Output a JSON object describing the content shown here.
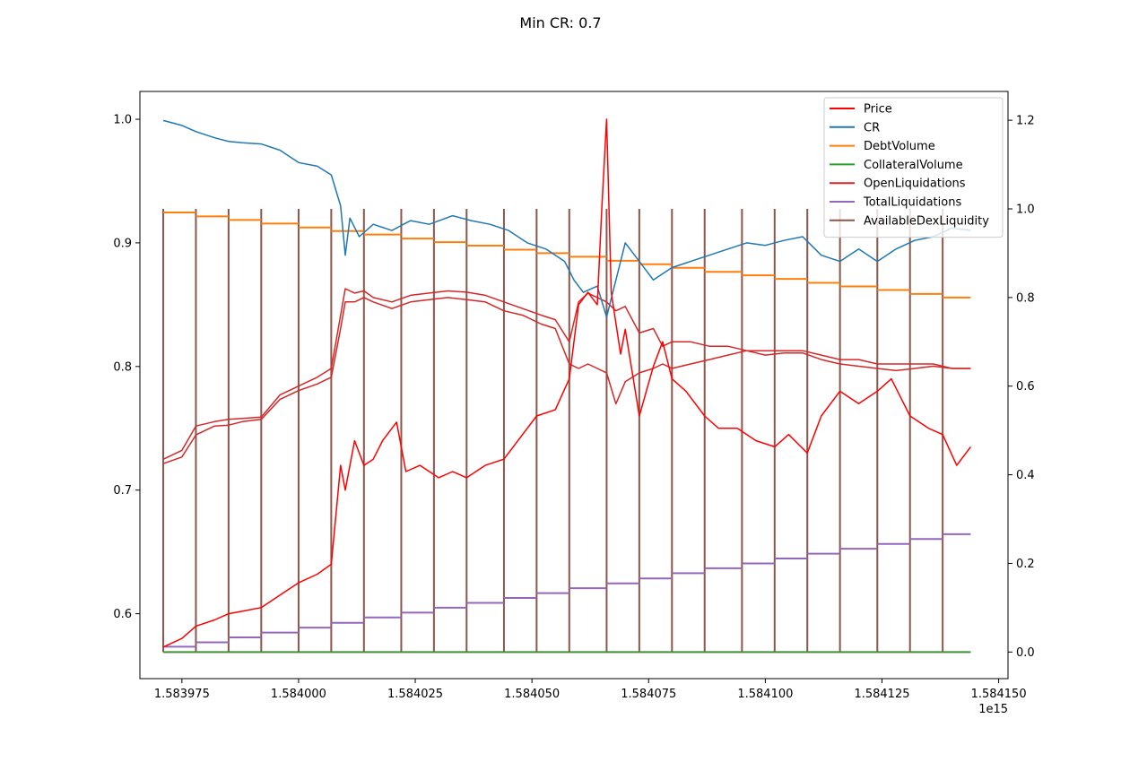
{
  "chart_data": {
    "type": "line",
    "title": "Min CR: 0.7",
    "x_offset_label": "1e15",
    "x_ticks": [
      "1.583975",
      "1.584000",
      "1.584025",
      "1.584050",
      "1.584075",
      "1.584100",
      "1.584125",
      "1.584150"
    ],
    "x_tick_values": [
      1.583975,
      1.584,
      1.584025,
      1.58405,
      1.584075,
      1.5841,
      1.584125,
      1.58415
    ],
    "xlim": [
      1.583966,
      1.584152
    ],
    "y_left_ticks": [
      "0.6",
      "0.7",
      "0.8",
      "0.9",
      "1.0"
    ],
    "y_left_tick_values": [
      0.6,
      0.7,
      0.8,
      0.9,
      1.0
    ],
    "ylim_left": [
      0.5475,
      1.0225
    ],
    "y_right_ticks": [
      "0.0",
      "0.2",
      "0.4",
      "0.6",
      "0.8",
      "1.0",
      "1.2"
    ],
    "y_right_tick_values": [
      0.0,
      0.2,
      0.4,
      0.6,
      0.8,
      1.0,
      1.2
    ],
    "ylim_right": [
      -0.06,
      1.265
    ],
    "legend_position": "top-right",
    "step_boundaries": [
      1.583971,
      1.583978,
      1.583985,
      1.583992,
      1.584,
      1.584007,
      1.584014,
      1.584022,
      1.584029,
      1.584036,
      1.584044,
      1.584051,
      1.584058,
      1.584066,
      1.584073,
      1.58408,
      1.584087,
      1.584095,
      1.584102,
      1.584109,
      1.584116,
      1.584124,
      1.584131,
      1.584138,
      1.584144
    ],
    "series": [
      {
        "name": "Price",
        "color": "#ff0000",
        "axis": "left",
        "x": [
          1.583971,
          1.583975,
          1.583978,
          1.583982,
          1.583985,
          1.583988,
          1.583992,
          1.583996,
          1.584,
          1.584004,
          1.584007,
          1.584009,
          1.58401,
          1.584012,
          1.584014,
          1.584016,
          1.584018,
          1.584021,
          1.584023,
          1.584026,
          1.58403,
          1.584033,
          1.584036,
          1.58404,
          1.584044,
          1.584047,
          1.584051,
          1.584055,
          1.584058,
          1.58406,
          1.584062,
          1.584064,
          1.584065,
          1.584066,
          1.584067,
          1.584069,
          1.58407,
          1.584073,
          1.584076,
          1.584078,
          1.58408,
          1.584083,
          1.584087,
          1.58409,
          1.584094,
          1.584098,
          1.584102,
          1.584105,
          1.584109,
          1.584112,
          1.584116,
          1.58412,
          1.584124,
          1.584127,
          1.584131,
          1.584135,
          1.584138,
          1.584141,
          1.584144
        ],
        "y": [
          0.573,
          0.58,
          0.59,
          0.595,
          0.6,
          0.602,
          0.605,
          0.615,
          0.625,
          0.632,
          0.64,
          0.72,
          0.7,
          0.74,
          0.72,
          0.725,
          0.74,
          0.755,
          0.715,
          0.72,
          0.71,
          0.715,
          0.71,
          0.72,
          0.725,
          0.74,
          0.76,
          0.765,
          0.79,
          0.85,
          0.86,
          0.85,
          0.93,
          1.0,
          0.86,
          0.81,
          0.83,
          0.76,
          0.8,
          0.82,
          0.79,
          0.78,
          0.76,
          0.75,
          0.75,
          0.74,
          0.735,
          0.745,
          0.73,
          0.76,
          0.78,
          0.77,
          0.78,
          0.79,
          0.76,
          0.75,
          0.745,
          0.72,
          0.735
        ]
      },
      {
        "name": "CR",
        "color": "#1f77b4",
        "axis": "left",
        "x": [
          1.583971,
          1.583975,
          1.583978,
          1.583982,
          1.583985,
          1.583988,
          1.583992,
          1.583996,
          1.584,
          1.584004,
          1.584007,
          1.584009,
          1.58401,
          1.584011,
          1.584013,
          1.584016,
          1.58402,
          1.584024,
          1.584028,
          1.584033,
          1.584037,
          1.584041,
          1.584045,
          1.584049,
          1.584053,
          1.584057,
          1.584059,
          1.584061,
          1.584064,
          1.584066,
          1.584068,
          1.58407,
          1.584073,
          1.584076,
          1.58408,
          1.584084,
          1.584088,
          1.584092,
          1.584096,
          1.5841,
          1.584104,
          1.584108,
          1.584112,
          1.584116,
          1.58412,
          1.584124,
          1.584128,
          1.584132,
          1.584136,
          1.58414,
          1.584144
        ],
        "y": [
          0.999,
          0.995,
          0.99,
          0.985,
          0.982,
          0.981,
          0.98,
          0.975,
          0.965,
          0.962,
          0.955,
          0.93,
          0.89,
          0.92,
          0.905,
          0.915,
          0.91,
          0.918,
          0.915,
          0.922,
          0.918,
          0.915,
          0.91,
          0.9,
          0.895,
          0.885,
          0.87,
          0.86,
          0.865,
          0.84,
          0.87,
          0.9,
          0.885,
          0.87,
          0.88,
          0.885,
          0.89,
          0.895,
          0.9,
          0.898,
          0.902,
          0.905,
          0.89,
          0.885,
          0.895,
          0.885,
          0.895,
          0.902,
          0.905,
          0.912,
          0.91
        ]
      },
      {
        "name": "DebtVolume",
        "color": "#ff7f0e",
        "axis": "right",
        "step": true,
        "values": [
          0.992,
          0.983,
          0.975,
          0.967,
          0.958,
          0.95,
          0.942,
          0.933,
          0.925,
          0.917,
          0.908,
          0.9,
          0.892,
          0.883,
          0.875,
          0.867,
          0.858,
          0.85,
          0.842,
          0.833,
          0.825,
          0.817,
          0.808,
          0.8
        ]
      },
      {
        "name": "CollateralVolume",
        "color": "#2ca02c",
        "axis": "right",
        "constant": 0.0
      },
      {
        "name": "OpenLiquidations",
        "color": "#d62728",
        "axis": "right",
        "note": "dual band",
        "x": [
          1.583971,
          1.583975,
          1.583978,
          1.583982,
          1.583985,
          1.583988,
          1.583992,
          1.583996,
          1.584,
          1.584004,
          1.584007,
          1.584009,
          1.58401,
          1.584012,
          1.584014,
          1.584016,
          1.58402,
          1.584024,
          1.584028,
          1.584032,
          1.584036,
          1.58404,
          1.584044,
          1.584048,
          1.584052,
          1.584055,
          1.584058,
          1.58406,
          1.584062,
          1.584064,
          1.584066,
          1.584068,
          1.58407,
          1.584073,
          1.584076,
          1.584078,
          1.58408,
          1.584084,
          1.584088,
          1.584092,
          1.584096,
          1.5841,
          1.584104,
          1.584108,
          1.584112,
          1.584116,
          1.58412,
          1.584124,
          1.584128,
          1.584132,
          1.584136,
          1.58414,
          1.584144
        ],
        "y_upper": [
          0.435,
          0.455,
          0.51,
          0.52,
          0.525,
          0.527,
          0.53,
          0.58,
          0.6,
          0.62,
          0.64,
          0.76,
          0.82,
          0.81,
          0.815,
          0.8,
          0.79,
          0.805,
          0.81,
          0.815,
          0.812,
          0.805,
          0.79,
          0.775,
          0.76,
          0.75,
          0.7,
          0.79,
          0.81,
          0.8,
          0.79,
          0.77,
          0.78,
          0.72,
          0.73,
          0.69,
          0.7,
          0.7,
          0.69,
          0.69,
          0.68,
          0.68,
          0.68,
          0.68,
          0.67,
          0.66,
          0.66,
          0.65,
          0.65,
          0.65,
          0.65,
          0.64,
          0.64
        ],
        "y_lower": [
          0.425,
          0.44,
          0.49,
          0.51,
          0.512,
          0.52,
          0.525,
          0.57,
          0.59,
          0.605,
          0.62,
          0.73,
          0.79,
          0.79,
          0.8,
          0.79,
          0.775,
          0.79,
          0.795,
          0.8,
          0.795,
          0.79,
          0.77,
          0.76,
          0.74,
          0.73,
          0.65,
          0.64,
          0.65,
          0.64,
          0.63,
          0.56,
          0.61,
          0.63,
          0.64,
          0.65,
          0.64,
          0.65,
          0.66,
          0.67,
          0.68,
          0.67,
          0.675,
          0.675,
          0.66,
          0.65,
          0.645,
          0.64,
          0.635,
          0.64,
          0.645,
          0.64,
          0.64
        ]
      },
      {
        "name": "TotalLiquidations",
        "color": "#9467bd",
        "axis": "right",
        "step": true,
        "values": [
          0.012,
          0.022,
          0.033,
          0.044,
          0.055,
          0.066,
          0.078,
          0.089,
          0.1,
          0.111,
          0.122,
          0.133,
          0.144,
          0.155,
          0.166,
          0.178,
          0.189,
          0.2,
          0.211,
          0.222,
          0.233,
          0.244,
          0.255,
          0.266
        ]
      },
      {
        "name": "AvailableDexLiquidity",
        "color": "#8c564b",
        "axis": "right",
        "spike": 1.0,
        "baseline": 0.0
      }
    ]
  }
}
